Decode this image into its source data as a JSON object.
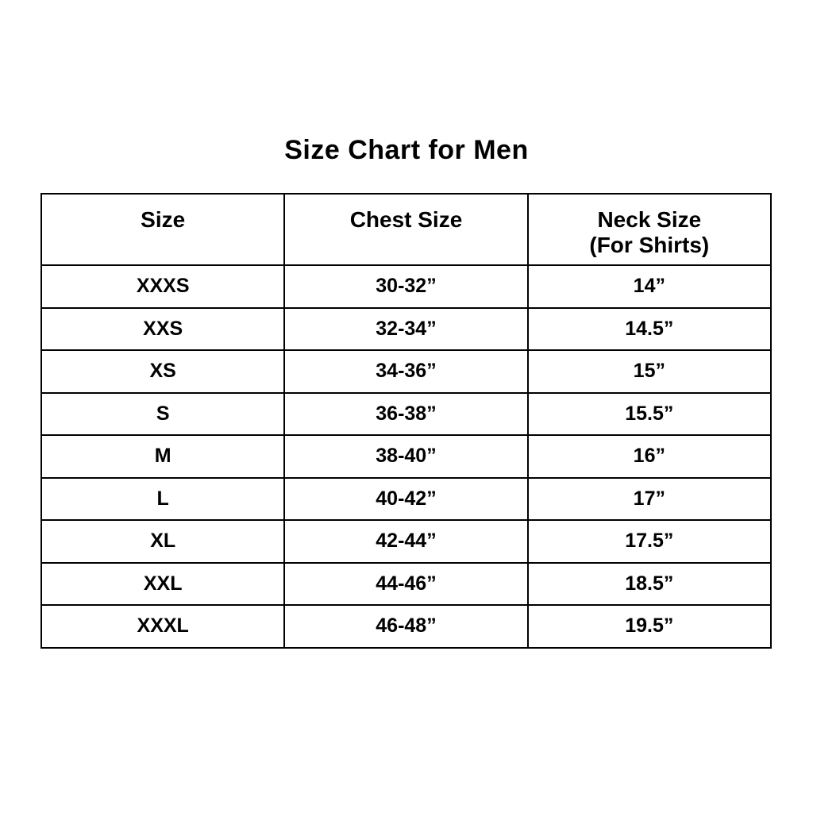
{
  "page": {
    "title": "Size Chart for Men"
  },
  "table": {
    "header": {
      "size": "Size",
      "chest": "Chest Size",
      "neck_line1": "Neck Size",
      "neck_line2": "(For Shirts)"
    },
    "rows": [
      {
        "size": "XXXS",
        "chest": "30-32”",
        "neck": "14”"
      },
      {
        "size": "XXS",
        "chest": "32-34”",
        "neck": "14.5”"
      },
      {
        "size": "XS",
        "chest": "34-36”",
        "neck": "15”"
      },
      {
        "size": "S",
        "chest": "36-38”",
        "neck": "15.5”"
      },
      {
        "size": "M",
        "chest": "38-40”",
        "neck": "16”"
      },
      {
        "size": "L",
        "chest": "40-42”",
        "neck": "17”"
      },
      {
        "size": "XL",
        "chest": "42-44”",
        "neck": "17.5”"
      },
      {
        "size": "XXL",
        "chest": "44-46”",
        "neck": "18.5”"
      },
      {
        "size": "XXXL",
        "chest": "46-48”",
        "neck": "19.5”"
      }
    ]
  },
  "colors": {
    "background": "#ffffff",
    "text": "#000000",
    "border": "#000000"
  },
  "chart_data": {
    "type": "table",
    "title": "Size Chart for Men",
    "columns": [
      "Size",
      "Chest Size",
      "Neck Size (For Shirts)"
    ],
    "rows": [
      [
        "XXXS",
        "30-32”",
        "14”"
      ],
      [
        "XXS",
        "32-34”",
        "14.5”"
      ],
      [
        "XS",
        "34-36”",
        "15”"
      ],
      [
        "S",
        "36-38”",
        "15.5”"
      ],
      [
        "M",
        "38-40”",
        "16”"
      ],
      [
        "L",
        "40-42”",
        "17”"
      ],
      [
        "XL",
        "42-44”",
        "17.5”"
      ],
      [
        "XXL",
        "44-46”",
        "18.5”"
      ],
      [
        "XXXL",
        "46-48”",
        "19.5”"
      ]
    ]
  }
}
